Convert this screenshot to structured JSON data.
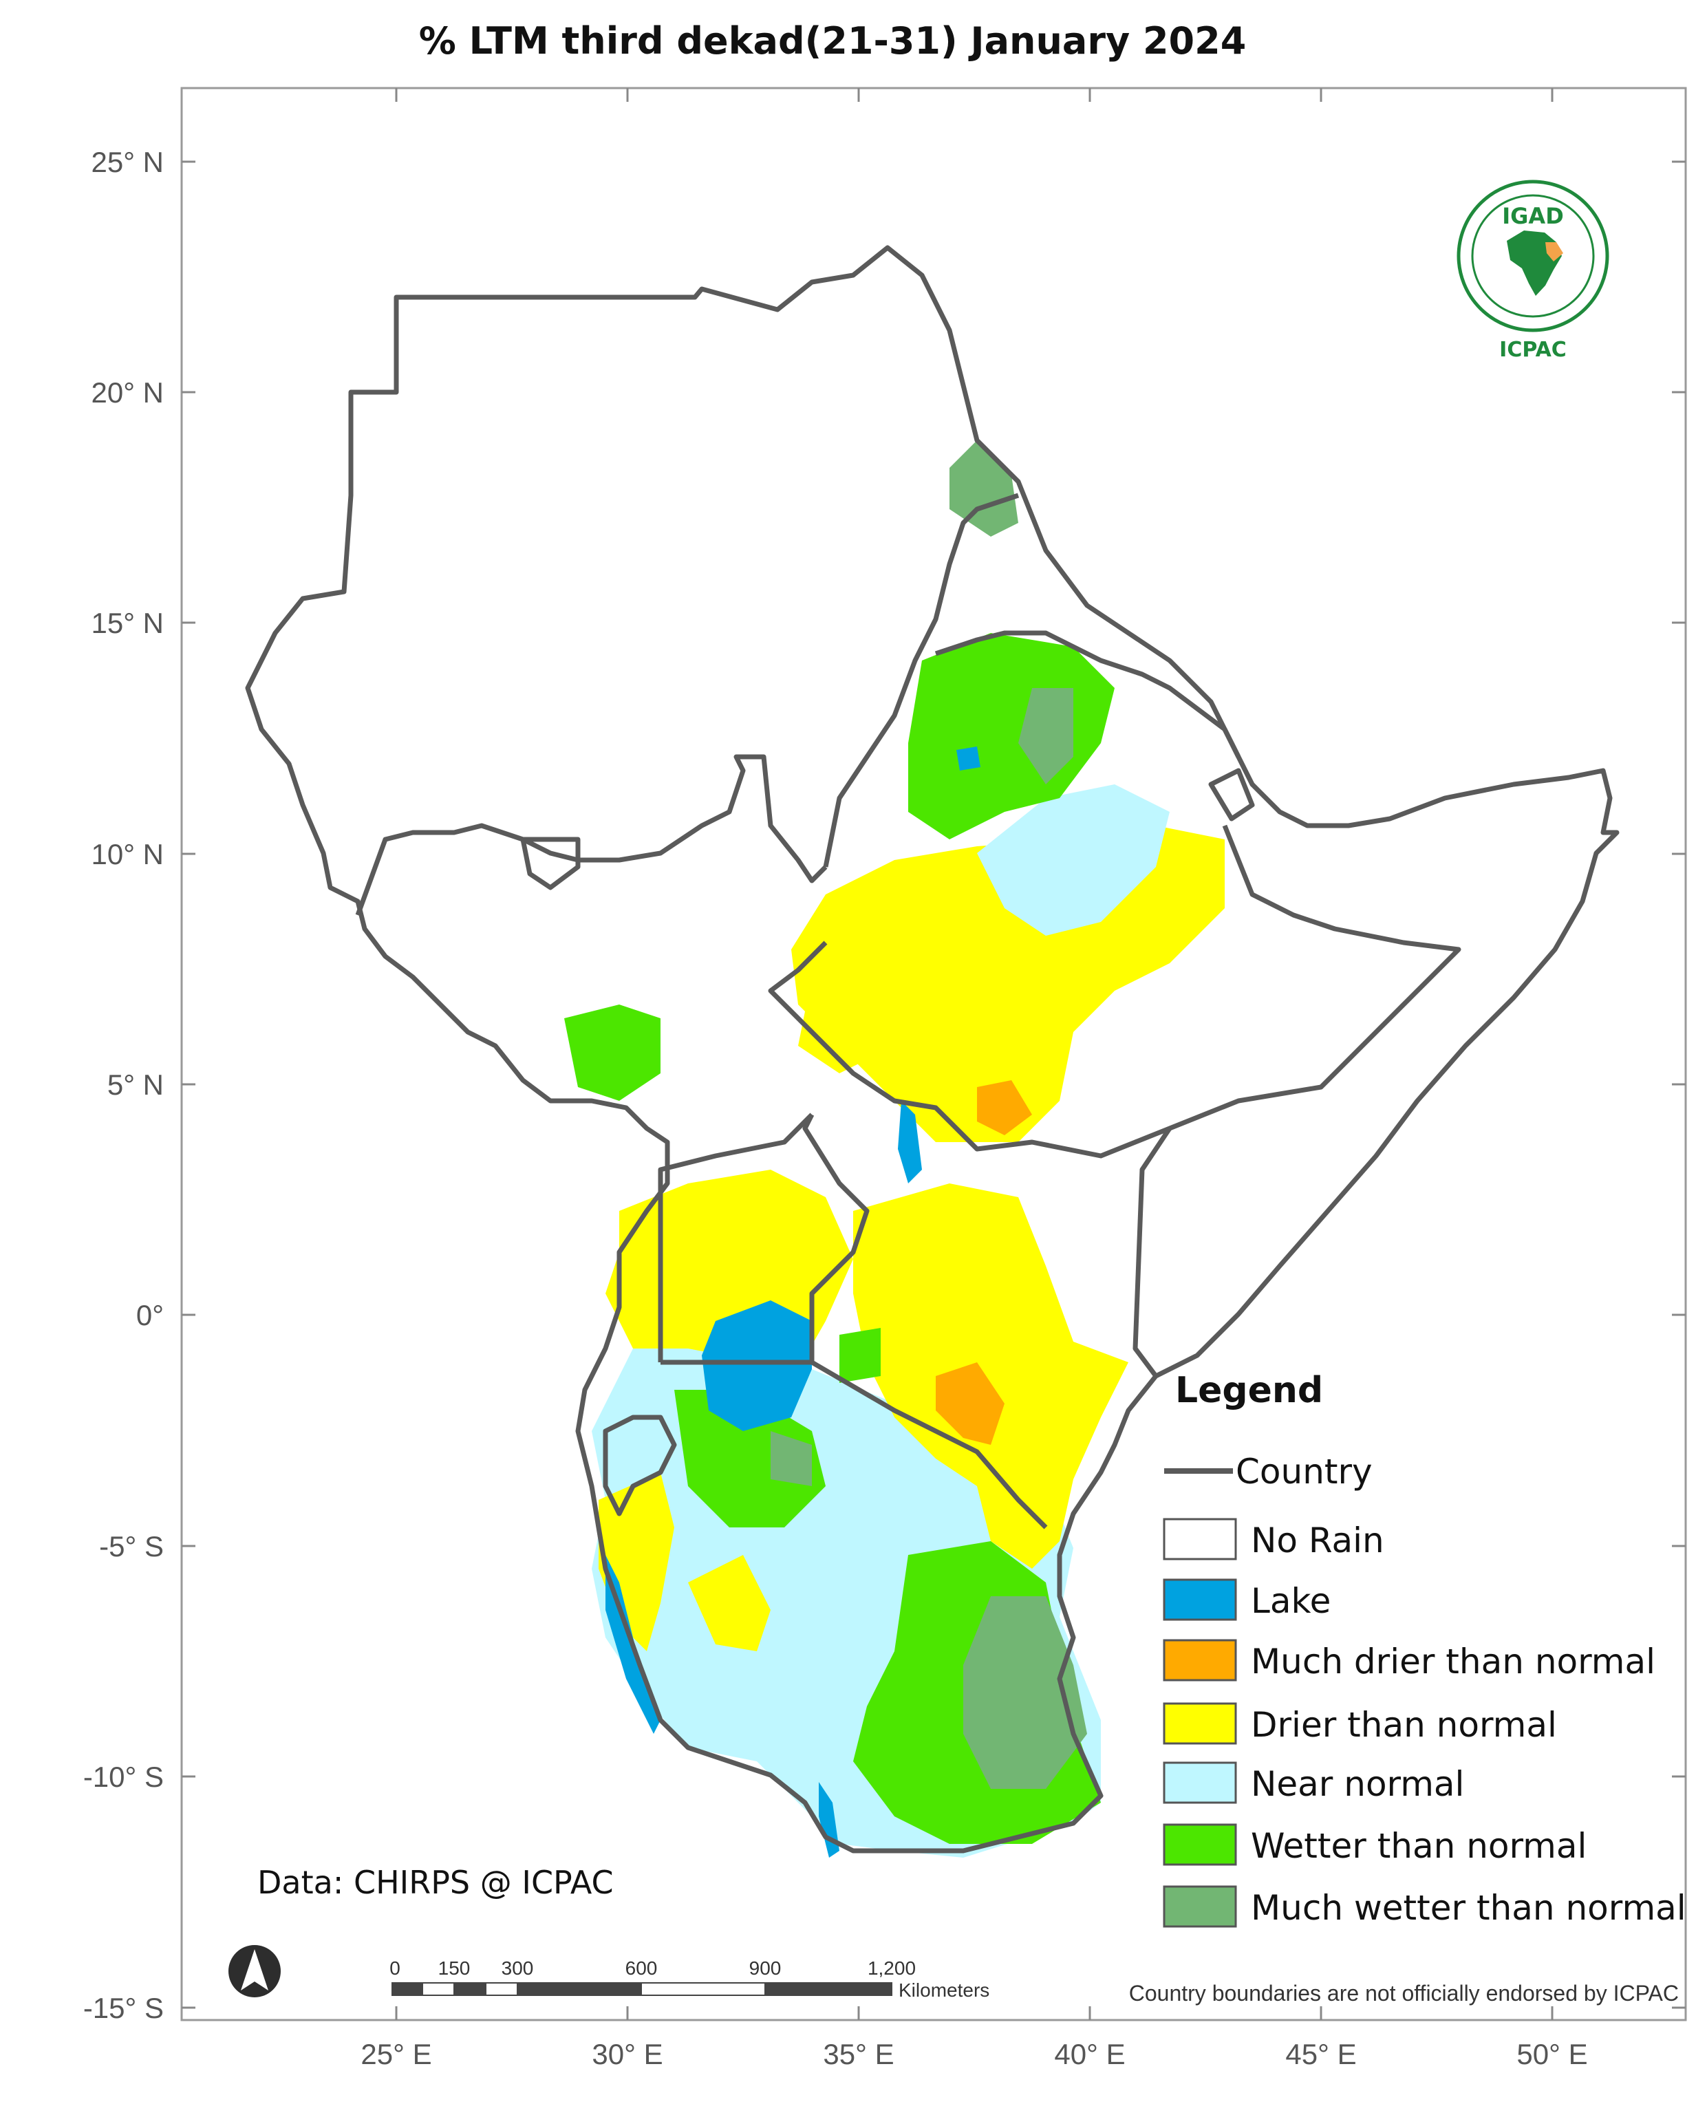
{
  "title": "% LTM  third dekad(21-31) January 2024",
  "axes": {
    "lat_labels": [
      "25° N",
      "20° N",
      "15° N",
      "10° N",
      "5° N",
      "0°",
      "-5° S",
      "-10° S",
      "-15° S"
    ],
    "lon_labels": [
      "25° E",
      "30° E",
      "35° E",
      "40° E",
      "45° E",
      "50° E"
    ]
  },
  "logo": {
    "top": "IGAD",
    "bottom": "ICPAC"
  },
  "legend": {
    "title": "Legend",
    "country_label": "Country",
    "items": [
      {
        "label": "No Rain",
        "color": "#ffffff"
      },
      {
        "label": "Lake",
        "color": "#00a2e0"
      },
      {
        "label": "Much drier than normal",
        "color": "#ffaa00"
      },
      {
        "label": "Drier than normal",
        "color": "#ffff00"
      },
      {
        "label": "Near normal",
        "color": "#bff7ff"
      },
      {
        "label": "Wetter than normal",
        "color": "#4ce600"
      },
      {
        "label": "Much wetter than normal",
        "color": "#72b673"
      }
    ]
  },
  "credit": "Data: CHIRPS @ ICPAC",
  "scale_bar": {
    "ticks": [
      "0",
      "150",
      "300",
      "600",
      "900",
      "1,200"
    ],
    "unit": "Kilometers"
  },
  "disclaimer": "Country boundaries are not officially endorsed by ICPAC",
  "colors": {
    "boundary": "#5a5a5a",
    "frame": "#9a9a9a"
  }
}
